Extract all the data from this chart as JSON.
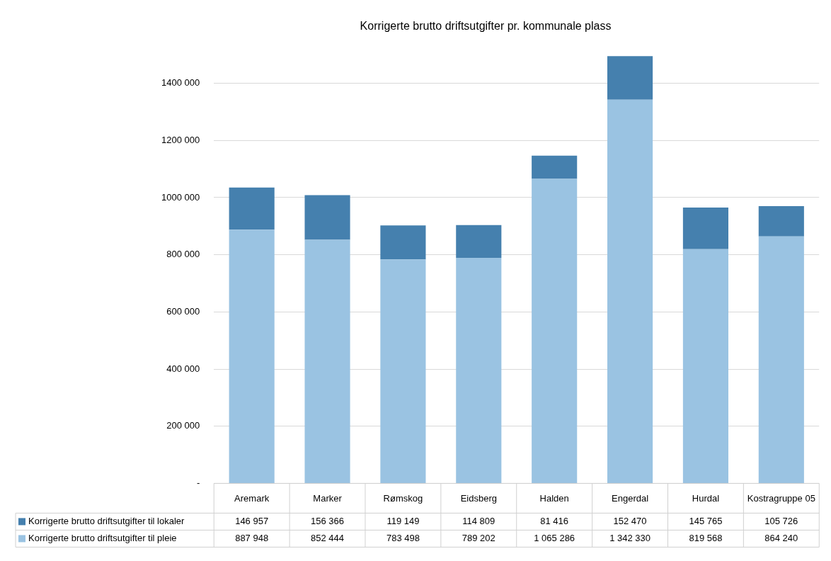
{
  "chart_data": {
    "type": "bar",
    "stacked": true,
    "title": "Korrigerte brutto driftsutgifter pr. kommunale plass",
    "categories": [
      "Aremark",
      "Marker",
      "Rømskog",
      "Eidsberg",
      "Halden",
      "Engerdal",
      "Hurdal",
      "Kostragruppe 05"
    ],
    "series": [
      {
        "name": "Korrigerte brutto driftsutgifter til pleie",
        "color": "#9ac3e2",
        "values": [
          887948,
          852444,
          783498,
          789202,
          1065286,
          1342330,
          819568,
          864240
        ]
      },
      {
        "name": "Korrigerte brutto driftsutgifter til lokaler",
        "color": "#4580ae",
        "values": [
          146957,
          156366,
          119149,
          114809,
          81416,
          152470,
          145765,
          105726
        ]
      }
    ],
    "ylim": [
      0,
      1500000
    ],
    "yticks": [
      {
        "value": 0,
        "label": "-"
      },
      {
        "value": 200000,
        "label": "200 000"
      },
      {
        "value": 400000,
        "label": "400 000"
      },
      {
        "value": 600000,
        "label": "600 000"
      },
      {
        "value": 800000,
        "label": "800 000"
      },
      {
        "value": 1000000,
        "label": "1000 000"
      },
      {
        "value": 1200000,
        "label": "1200 000"
      },
      {
        "value": 1400000,
        "label": "1400 000"
      }
    ],
    "grid": "y",
    "legend": "bottom left",
    "data_labels": true
  }
}
